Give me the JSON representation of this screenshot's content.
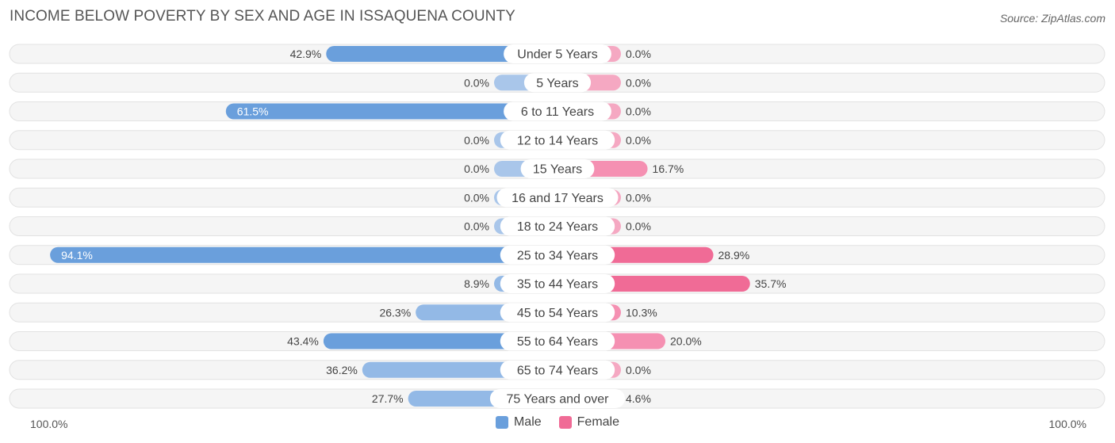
{
  "header": {
    "title": "INCOME BELOW POVERTY BY SEX AND AGE IN ISSAQUENA COUNTY",
    "source": "Source: ZipAtlas.com"
  },
  "colors": {
    "male": "#6a9fdc",
    "male_light": "#a9c6ea",
    "female": "#f06b96",
    "female_light": "#f5a8c2",
    "row_bg": "#eeeeee"
  },
  "chart_data": {
    "type": "bar",
    "orientation": "horizontal-diverging",
    "categories": [
      "Under 5 Years",
      "5 Years",
      "6 to 11 Years",
      "12 to 14 Years",
      "15 Years",
      "16 and 17 Years",
      "18 to 24 Years",
      "25 to 34 Years",
      "35 to 44 Years",
      "45 to 54 Years",
      "55 to 64 Years",
      "65 to 74 Years",
      "75 Years and over"
    ],
    "series": [
      {
        "name": "Male",
        "values": [
          42.9,
          0.0,
          61.5,
          0.0,
          0.0,
          0.0,
          0.0,
          94.1,
          8.9,
          26.3,
          43.4,
          36.2,
          27.7
        ]
      },
      {
        "name": "Female",
        "values": [
          0.0,
          0.0,
          0.0,
          0.0,
          16.7,
          0.0,
          0.0,
          28.9,
          35.7,
          10.3,
          20.0,
          0.0,
          4.6
        ]
      }
    ],
    "value_labels_male": [
      "42.9%",
      "0.0%",
      "61.5%",
      "0.0%",
      "0.0%",
      "0.0%",
      "0.0%",
      "94.1%",
      "8.9%",
      "26.3%",
      "43.4%",
      "36.2%",
      "27.7%"
    ],
    "value_labels_female": [
      "0.0%",
      "0.0%",
      "0.0%",
      "0.0%",
      "16.7%",
      "0.0%",
      "0.0%",
      "28.9%",
      "35.7%",
      "10.3%",
      "20.0%",
      "0.0%",
      "4.6%"
    ],
    "xlim": [
      0,
      100
    ],
    "axis_min_label": "100.0%",
    "axis_max_label": "100.0%",
    "legend": [
      "Male",
      "Female"
    ],
    "legend_position": "bottom-center"
  }
}
